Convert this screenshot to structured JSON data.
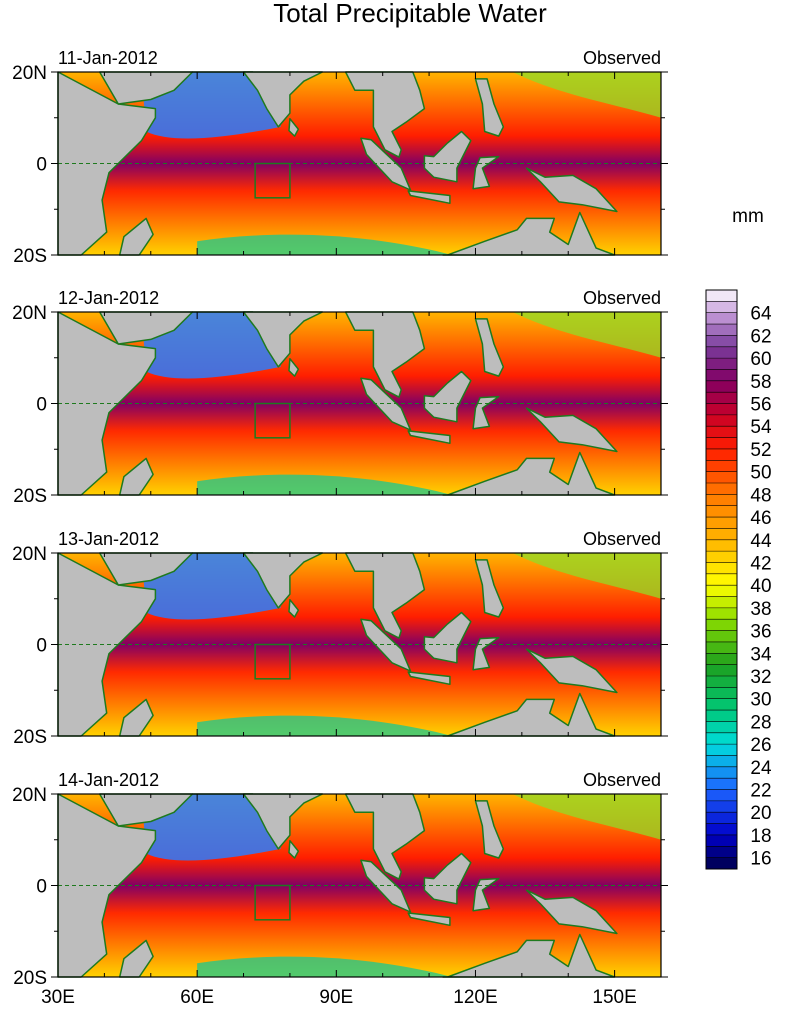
{
  "title": "Total Precipitable Water",
  "units_label": "mm",
  "panel_tag": "Observed",
  "panels": [
    {
      "date": "11-Jan-2012"
    },
    {
      "date": "12-Jan-2012"
    },
    {
      "date": "13-Jan-2012"
    },
    {
      "date": "14-Jan-2012"
    }
  ],
  "map": {
    "lon_range": [
      30,
      160
    ],
    "lat_range": [
      -20,
      20
    ],
    "x_ticks": [
      {
        "lon": 30,
        "label": "30E"
      },
      {
        "lon": 60,
        "label": "60E"
      },
      {
        "lon": 90,
        "label": "90E"
      },
      {
        "lon": 120,
        "label": "120E"
      },
      {
        "lon": 150,
        "label": "150E"
      }
    ],
    "y_ticks": [
      {
        "lat": 20,
        "label": "20N"
      },
      {
        "lat": 0,
        "label": "0"
      },
      {
        "lat": -20,
        "label": "20S"
      }
    ],
    "land_color": "#bdbdbd",
    "coast_color": "#1e7a1e",
    "box_region": {
      "lon": [
        72.5,
        80
      ],
      "lat": [
        -7.5,
        0
      ]
    }
  },
  "colorbar": {
    "min": 15,
    "max": 66,
    "step": 1,
    "labels": [
      "64",
      "62",
      "60",
      "58",
      "56",
      "54",
      "52",
      "50",
      "48",
      "46",
      "44",
      "42",
      "40",
      "38",
      "36",
      "34",
      "32",
      "30",
      "28",
      "26",
      "24",
      "22",
      "20",
      "18",
      "16"
    ],
    "stops": [
      {
        "v": 15,
        "c": "#00004a"
      },
      {
        "v": 18,
        "c": "#0000c8"
      },
      {
        "v": 22,
        "c": "#1e64ff"
      },
      {
        "v": 26,
        "c": "#00dcdc"
      },
      {
        "v": 29,
        "c": "#00c878"
      },
      {
        "v": 33,
        "c": "#1ea01e"
      },
      {
        "v": 37,
        "c": "#8cdc00"
      },
      {
        "v": 40,
        "c": "#ffff00"
      },
      {
        "v": 44,
        "c": "#ffb400"
      },
      {
        "v": 48,
        "c": "#ff7800"
      },
      {
        "v": 52,
        "c": "#ff1e00"
      },
      {
        "v": 55,
        "c": "#c80028"
      },
      {
        "v": 58,
        "c": "#820064"
      },
      {
        "v": 61,
        "c": "#7a3c9c"
      },
      {
        "v": 64,
        "c": "#c8a0dc"
      },
      {
        "v": 66,
        "c": "#ffffff"
      }
    ]
  }
}
